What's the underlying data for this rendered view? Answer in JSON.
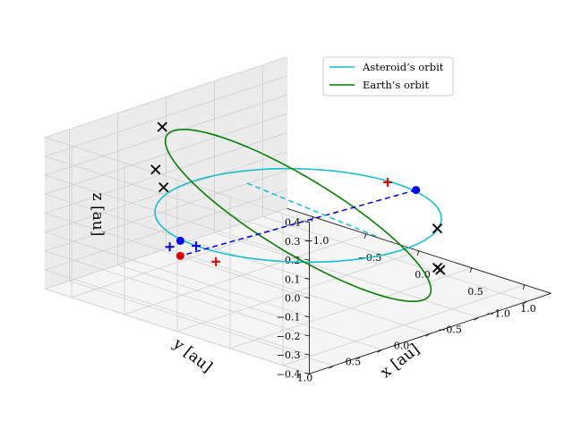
{
  "chart_data": {
    "type": "line3d",
    "title": "",
    "xlabel": "x [au]",
    "ylabel": "y [au]",
    "zlabel": "z [au]",
    "xlim": [
      -1.25,
      1.25
    ],
    "ylim": [
      -1.25,
      1.25
    ],
    "zlim": [
      -0.4,
      0.4
    ],
    "x_ticks": [
      "−1.0",
      "−0.5",
      "0.0",
      "0.5",
      "1.0"
    ],
    "y_ticks": [
      "−1.0",
      "−0.5",
      "0.0",
      "0.5",
      "1.0"
    ],
    "z_ticks": [
      "−0.4",
      "−0.3",
      "−0.2",
      "−0.1",
      "0.0",
      "0.1",
      "0.2",
      "0.3",
      "0.4"
    ],
    "grid": true,
    "legend_position": "top-right",
    "series": [
      {
        "name": "Asteroid’s orbit",
        "color": "#17becf",
        "orbit": {
          "radius": 1.0,
          "inclination_deg": 0
        }
      },
      {
        "name": "Earth’s orbit",
        "color": "#008000",
        "orbit": {
          "radius": 1.0,
          "inclination_deg": 22,
          "node_deg": 45
        }
      }
    ],
    "blue_dots": [
      [
        0.2,
        -1.0,
        0.0
      ],
      [
        -0.2,
        1.0,
        0.0
      ]
    ],
    "red_dot": [
      -0.2,
      1.0,
      -0.08
    ],
    "red_plus": [
      [
        0.72,
        -0.14,
        0.28
      ],
      [
        0.0,
        0.85,
        -0.1
      ]
    ],
    "blue_plus": [
      [
        -0.05,
        1.0,
        0.0
      ],
      [
        -0.3,
        1.0,
        -0.05
      ]
    ],
    "black_x": [
      [
        -0.92,
        0.4,
        0.37
      ],
      [
        -0.45,
        0.9,
        0.22
      ],
      [
        -0.8,
        0.6,
        0.2
      ],
      [
        0.86,
        -0.5,
        0.0
      ],
      [
        0.65,
        -0.76,
        -0.3
      ],
      [
        0.55,
        -0.84,
        -0.32
      ]
    ],
    "dashed_blue": [
      [
        0.2,
        -1.0,
        0.0
      ],
      [
        -0.2,
        1.0,
        -0.08
      ]
    ],
    "dashed_cyan": [
      [
        -0.3,
        0.2,
        0.15
      ],
      [
        0.5,
        -0.3,
        -0.08
      ]
    ]
  }
}
